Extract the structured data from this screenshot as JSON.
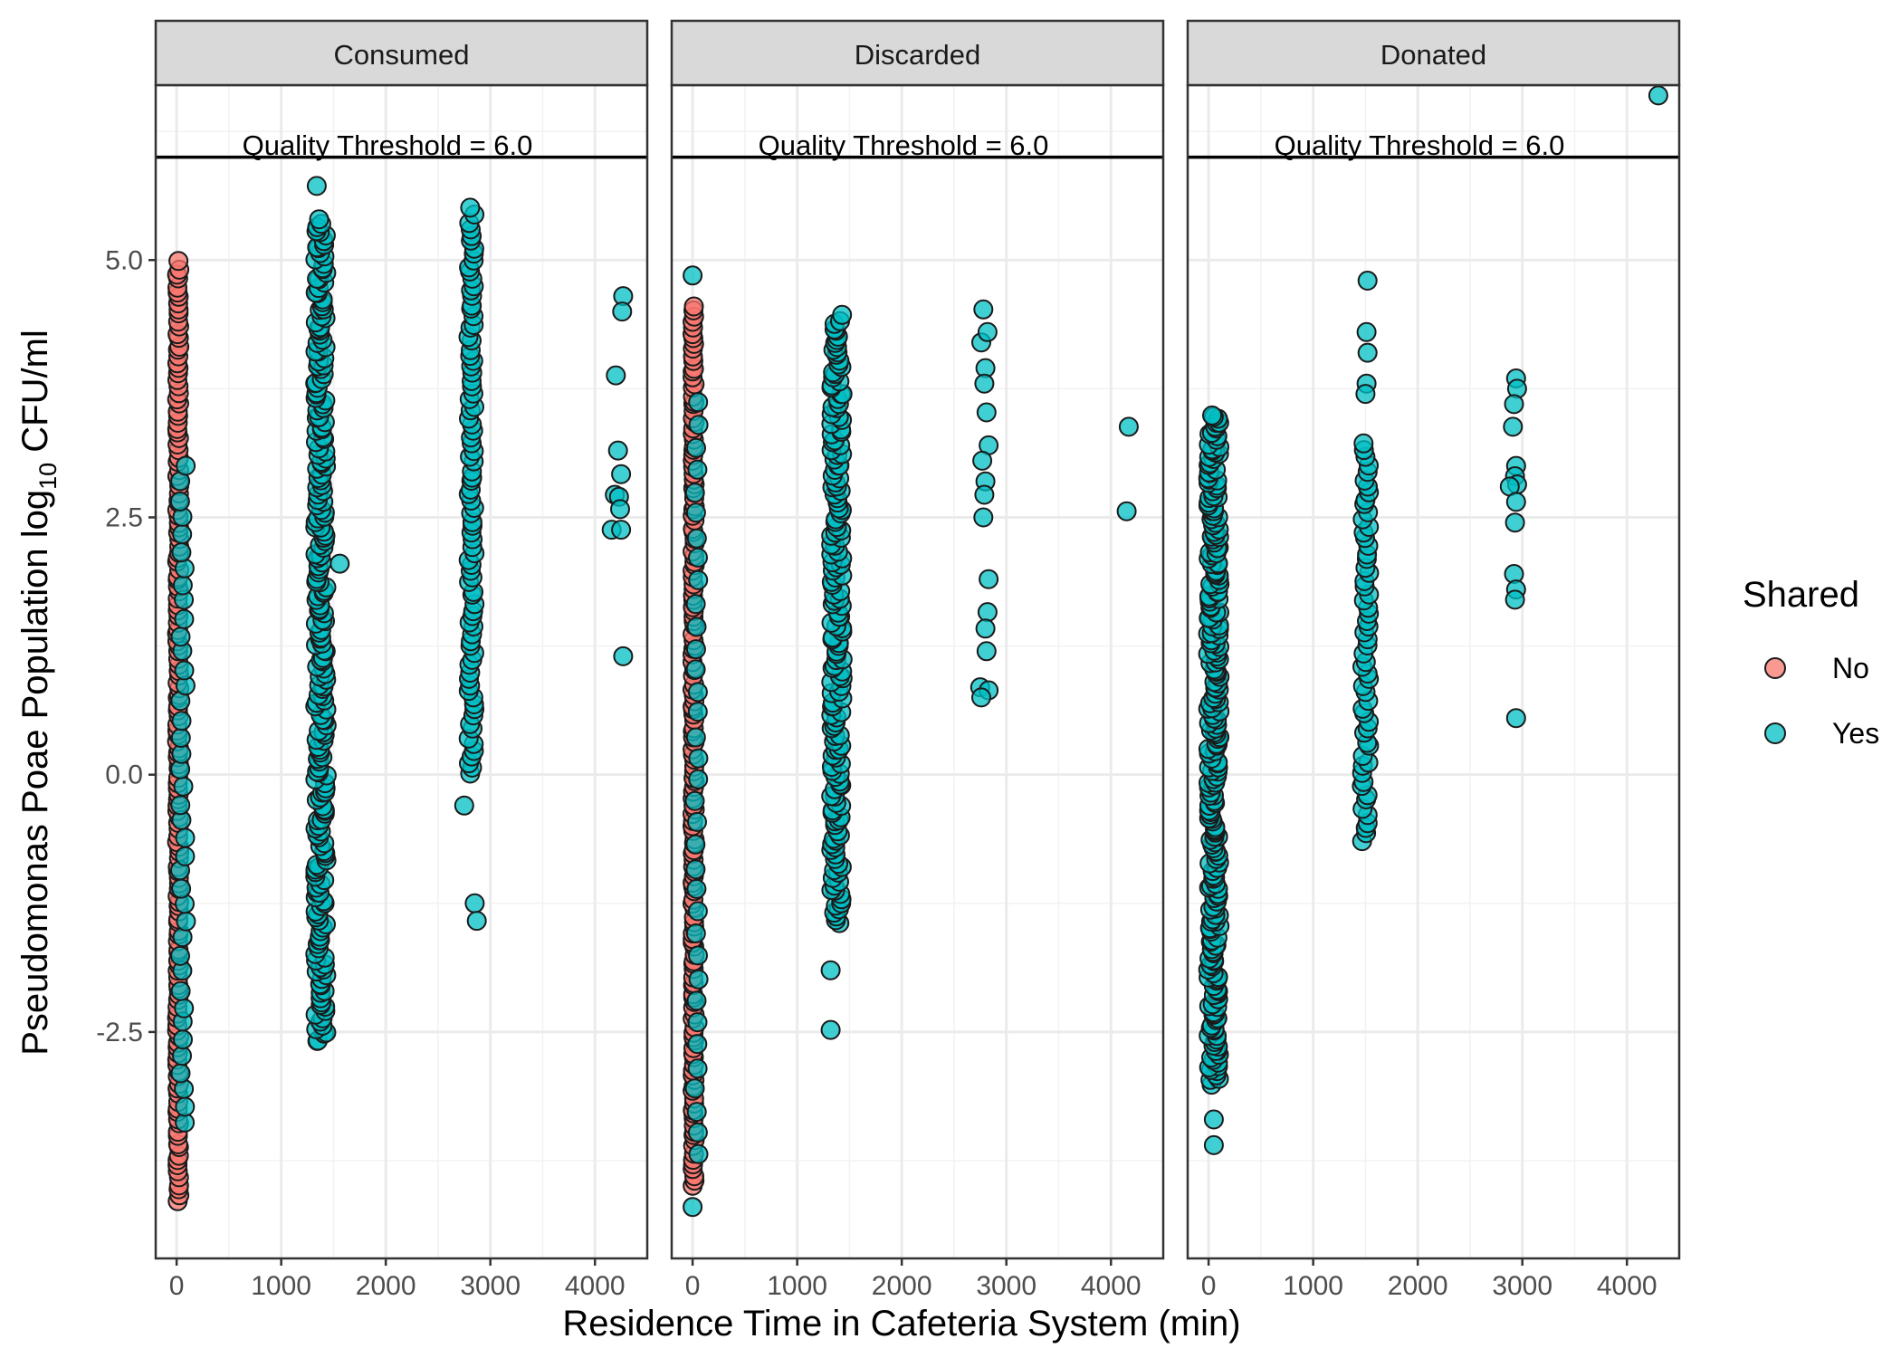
{
  "chart_data": {
    "type": "scatter",
    "facet_by": [
      "Consumed",
      "Discarded",
      "Donated"
    ],
    "xlabel": "Residence Time in Cafeteria System (min)",
    "ylabel_main": "Pseudomonas Poae Population log",
    "ylabel_sub": "10",
    "ylabel_tail": " CFU/ml",
    "x_ticks": [
      0,
      1000,
      2000,
      3000,
      4000
    ],
    "x_tick_labels": [
      "0",
      "1000",
      "2000",
      "3000",
      "4000"
    ],
    "y_ticks": [
      -2.5,
      0,
      2.5,
      5
    ],
    "y_tick_labels": [
      "-2.5",
      "0.0",
      "2.5",
      "5.0"
    ],
    "xlim": [
      -200,
      4500
    ],
    "ylim": [
      -4.7,
      6.7
    ],
    "hline": {
      "y": 6.0,
      "label": "Quality Threshold = 6.0"
    },
    "legend": {
      "title": "Shared",
      "position": "right",
      "entries": [
        {
          "label": "No",
          "color": "#F8766D"
        },
        {
          "label": "Yes",
          "color": "#00BFC4"
        }
      ]
    },
    "grid": true,
    "panels": [
      {
        "name": "Consumed",
        "series": [
          {
            "name": "No",
            "color": "#F8766D",
            "groups": [
              {
                "x": 15,
                "ymin": -4.15,
                "ymax": 4.98,
                "n": 160,
                "spread": 22
              }
            ]
          },
          {
            "name": "Yes",
            "color": "#00BFC4",
            "groups": [
              {
                "x": 60,
                "ymin": -3.4,
                "ymax": 3.0,
                "n": 40,
                "spread": 60
              },
              {
                "x": 1380,
                "ymin": -2.6,
                "ymax": 5.4,
                "n": 240,
                "spread": 110
              },
              {
                "x": 2820,
                "ymin": 0.0,
                "ymax": 5.5,
                "n": 90,
                "spread": 60
              }
            ],
            "points": [
              {
                "x": 1340,
                "y": 5.72
              },
              {
                "x": 1560,
                "y": 2.05
              },
              {
                "x": 2750,
                "y": -0.3
              },
              {
                "x": 2850,
                "y": -1.25
              },
              {
                "x": 2870,
                "y": -1.42
              },
              {
                "x": 4270,
                "y": 4.65
              },
              {
                "x": 4260,
                "y": 4.5
              },
              {
                "x": 4200,
                "y": 3.88
              },
              {
                "x": 4220,
                "y": 3.15
              },
              {
                "x": 4250,
                "y": 2.92
              },
              {
                "x": 4190,
                "y": 2.72
              },
              {
                "x": 4230,
                "y": 2.7
              },
              {
                "x": 4240,
                "y": 2.58
              },
              {
                "x": 4160,
                "y": 2.38
              },
              {
                "x": 4250,
                "y": 2.38
              },
              {
                "x": 4270,
                "y": 1.15
              }
            ]
          }
        ]
      },
      {
        "name": "Discarded",
        "series": [
          {
            "name": "No",
            "color": "#F8766D",
            "groups": [
              {
                "x": 10,
                "ymin": -4.0,
                "ymax": 4.55,
                "n": 160,
                "spread": 22
              }
            ]
          },
          {
            "name": "Yes",
            "color": "#00BFC4",
            "groups": [
              {
                "x": 40,
                "ymin": -3.7,
                "ymax": 3.6,
                "n": 35,
                "spread": 40
              },
              {
                "x": 1380,
                "ymin": -1.45,
                "ymax": 4.45,
                "n": 170,
                "spread": 110
              }
            ],
            "points": [
              {
                "x": 0,
                "y": 4.85
              },
              {
                "x": 0,
                "y": -4.2
              },
              {
                "x": 1320,
                "y": -1.9
              },
              {
                "x": 1320,
                "y": -2.48
              },
              {
                "x": 2780,
                "y": 4.52
              },
              {
                "x": 2760,
                "y": 4.2
              },
              {
                "x": 2820,
                "y": 4.3
              },
              {
                "x": 2800,
                "y": 3.95
              },
              {
                "x": 2790,
                "y": 3.8
              },
              {
                "x": 2810,
                "y": 3.52
              },
              {
                "x": 2830,
                "y": 3.2
              },
              {
                "x": 2770,
                "y": 3.05
              },
              {
                "x": 2800,
                "y": 2.85
              },
              {
                "x": 2790,
                "y": 2.72
              },
              {
                "x": 2780,
                "y": 2.5
              },
              {
                "x": 2830,
                "y": 1.9
              },
              {
                "x": 2820,
                "y": 1.58
              },
              {
                "x": 2800,
                "y": 1.42
              },
              {
                "x": 2810,
                "y": 1.2
              },
              {
                "x": 2750,
                "y": 0.85
              },
              {
                "x": 2830,
                "y": 0.82
              },
              {
                "x": 2760,
                "y": 0.75
              },
              {
                "x": 4170,
                "y": 3.38
              },
              {
                "x": 4150,
                "y": 2.56
              }
            ]
          }
        ]
      },
      {
        "name": "Donated",
        "series": [
          {
            "name": "Yes",
            "color": "#00BFC4",
            "groups": [
              {
                "x": 50,
                "ymin": -3.0,
                "ymax": 3.5,
                "n": 260,
                "spread": 110
              },
              {
                "x": 1500,
                "ymin": -0.65,
                "ymax": 3.2,
                "n": 60,
                "spread": 70
              }
            ],
            "points": [
              {
                "x": 50,
                "y": -3.35
              },
              {
                "x": 50,
                "y": -3.6
              },
              {
                "x": 1520,
                "y": 4.8
              },
              {
                "x": 1510,
                "y": 4.3
              },
              {
                "x": 1520,
                "y": 4.1
              },
              {
                "x": 1510,
                "y": 3.8
              },
              {
                "x": 1500,
                "y": 3.7
              },
              {
                "x": 2940,
                "y": 3.85
              },
              {
                "x": 2950,
                "y": 3.75
              },
              {
                "x": 2920,
                "y": 3.6
              },
              {
                "x": 2910,
                "y": 3.38
              },
              {
                "x": 2940,
                "y": 3.0
              },
              {
                "x": 2930,
                "y": 2.9
              },
              {
                "x": 2950,
                "y": 2.82
              },
              {
                "x": 2880,
                "y": 2.8
              },
              {
                "x": 2940,
                "y": 2.65
              },
              {
                "x": 2930,
                "y": 2.45
              },
              {
                "x": 2920,
                "y": 1.95
              },
              {
                "x": 2940,
                "y": 1.8
              },
              {
                "x": 2930,
                "y": 1.7
              },
              {
                "x": 2940,
                "y": 0.55
              },
              {
                "x": 4300,
                "y": 6.6
              }
            ]
          }
        ]
      }
    ]
  }
}
